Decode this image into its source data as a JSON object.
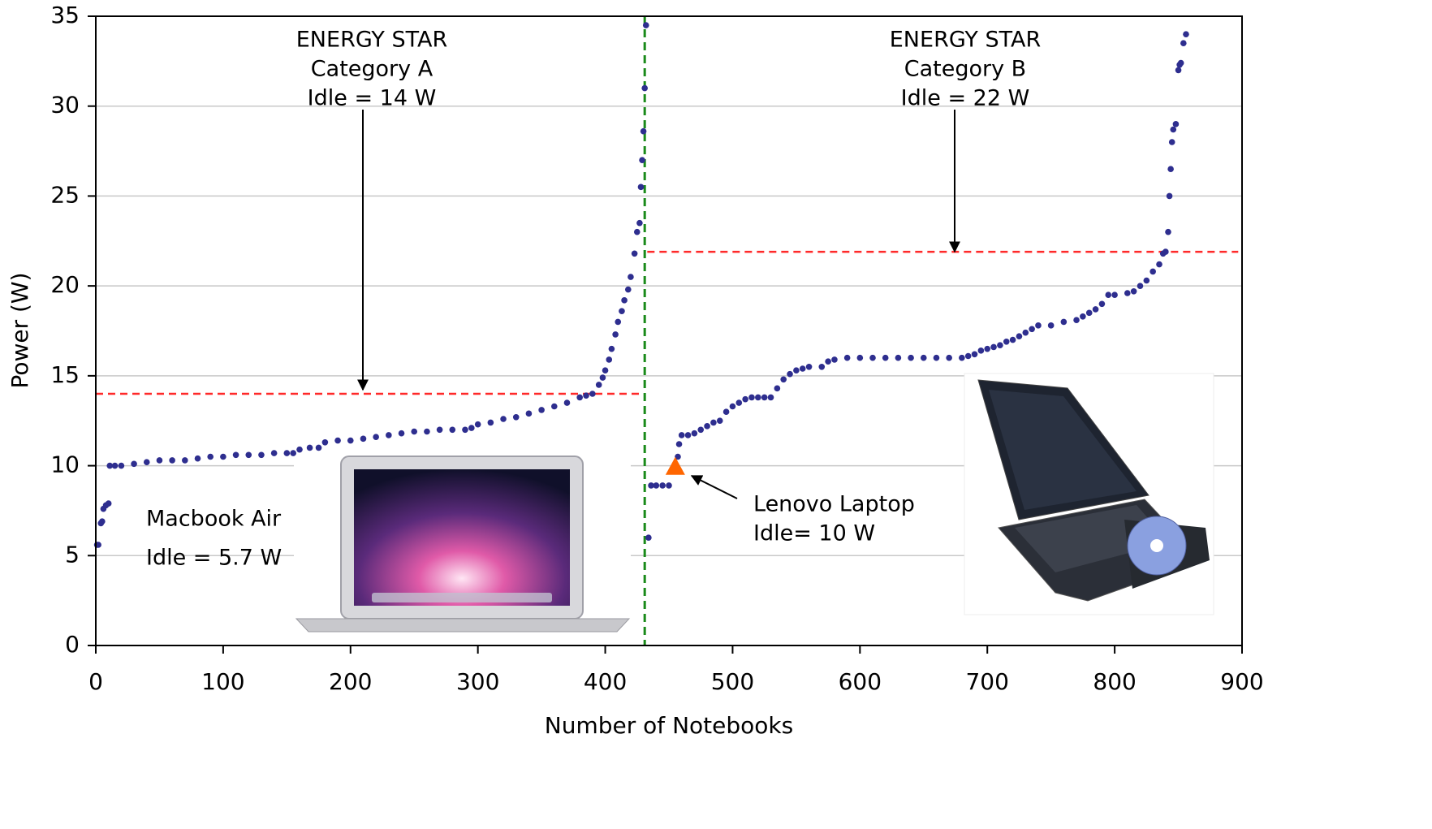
{
  "chart_data": {
    "type": "scatter",
    "x_label": "Number of Notebooks",
    "y_label": "Power (W)",
    "xlim": [
      0,
      900
    ],
    "xticks": [
      0,
      100,
      200,
      300,
      400,
      500,
      600,
      700,
      800,
      900
    ],
    "ylim": [
      0,
      35
    ],
    "yticks": [
      0,
      5,
      10,
      15,
      20,
      25,
      30,
      35
    ],
    "grid": true,
    "color": "#2e2e8f",
    "x": [
      1,
      2,
      4,
      5,
      6,
      8,
      10,
      11,
      15,
      20,
      30,
      40,
      50,
      60,
      70,
      80,
      90,
      100,
      110,
      120,
      130,
      140,
      150,
      155,
      160,
      168,
      175,
      180,
      190,
      200,
      210,
      220,
      230,
      240,
      250,
      260,
      270,
      280,
      290,
      295,
      300,
      310,
      320,
      330,
      340,
      350,
      360,
      370,
      380,
      385,
      390,
      395,
      398,
      400,
      403,
      405,
      408,
      410,
      413,
      415,
      418,
      420,
      423,
      425,
      427,
      428,
      429,
      430,
      431,
      432,
      434,
      436,
      440,
      445,
      450,
      457,
      458,
      460,
      465,
      470,
      475,
      480,
      485,
      490,
      495,
      500,
      505,
      510,
      515,
      520,
      525,
      530,
      535,
      540,
      545,
      550,
      555,
      560,
      570,
      575,
      580,
      590,
      600,
      610,
      620,
      630,
      640,
      650,
      660,
      670,
      680,
      685,
      690,
      695,
      700,
      705,
      710,
      715,
      720,
      725,
      730,
      735,
      740,
      750,
      760,
      770,
      775,
      780,
      785,
      790,
      795,
      800,
      810,
      815,
      820,
      825,
      830,
      835,
      838,
      840,
      842,
      843,
      844,
      845,
      846,
      848,
      850,
      851,
      852,
      854,
      856
    ],
    "values": [
      5.6,
      5.6,
      6.8,
      6.9,
      7.6,
      7.8,
      7.9,
      10.0,
      10.0,
      10.0,
      10.1,
      10.2,
      10.3,
      10.3,
      10.3,
      10.4,
      10.5,
      10.5,
      10.6,
      10.6,
      10.6,
      10.7,
      10.7,
      10.7,
      10.9,
      11.0,
      11.0,
      11.3,
      11.4,
      11.4,
      11.5,
      11.6,
      11.7,
      11.8,
      11.9,
      11.9,
      12.0,
      12.0,
      12.0,
      12.1,
      12.3,
      12.4,
      12.6,
      12.7,
      12.9,
      13.1,
      13.3,
      13.5,
      13.8,
      13.9,
      14.0,
      14.5,
      14.9,
      15.3,
      15.9,
      16.5,
      17.3,
      18.0,
      18.6,
      19.2,
      19.8,
      20.5,
      21.8,
      23.0,
      23.5,
      25.5,
      27.0,
      28.6,
      31.0,
      34.5,
      6.0,
      8.9,
      8.9,
      8.9,
      8.9,
      10.5,
      11.2,
      11.7,
      11.7,
      11.8,
      12.0,
      12.2,
      12.4,
      12.5,
      13.0,
      13.3,
      13.5,
      13.7,
      13.8,
      13.8,
      13.8,
      13.8,
      14.3,
      14.8,
      15.1,
      15.3,
      15.4,
      15.5,
      15.5,
      15.8,
      15.9,
      16.0,
      16.0,
      16.0,
      16.0,
      16.0,
      16.0,
      16.0,
      16.0,
      16.0,
      16.0,
      16.1,
      16.2,
      16.4,
      16.5,
      16.6,
      16.7,
      16.9,
      17.0,
      17.2,
      17.4,
      17.6,
      17.8,
      17.8,
      18.0,
      18.1,
      18.3,
      18.5,
      18.7,
      19.0,
      19.5,
      19.5,
      19.6,
      19.7,
      20.0,
      20.3,
      20.8,
      21.2,
      21.8,
      21.9,
      23.0,
      25.0,
      26.5,
      28.0,
      28.7,
      29.0,
      32.0,
      32.3,
      32.4,
      33.5,
      34.0
    ],
    "highlight": {
      "x": 455,
      "y": 9.9,
      "color": "#ff6600",
      "marker": "triangle"
    },
    "reference_lines": [
      {
        "y": 14,
        "x": [
          0,
          428
        ],
        "color": "#ff2a2a"
      },
      {
        "y": 21.9,
        "x": [
          433,
          897
        ],
        "color": "#ff2a2a"
      },
      {
        "x": 431,
        "color": "#1a8a1a"
      }
    ],
    "annotations": [
      {
        "lines": [
          "ENERGY STAR",
          "Category A",
          "Idle = 14 W"
        ]
      },
      {
        "lines": [
          "ENERGY STAR",
          "Category B",
          "Idle = 22 W"
        ]
      },
      {
        "lines": [
          "Macbook Air",
          "Idle = 5.7 W"
        ]
      },
      {
        "lines": [
          "Lenovo Laptop",
          "Idle= 10 W"
        ]
      }
    ]
  }
}
